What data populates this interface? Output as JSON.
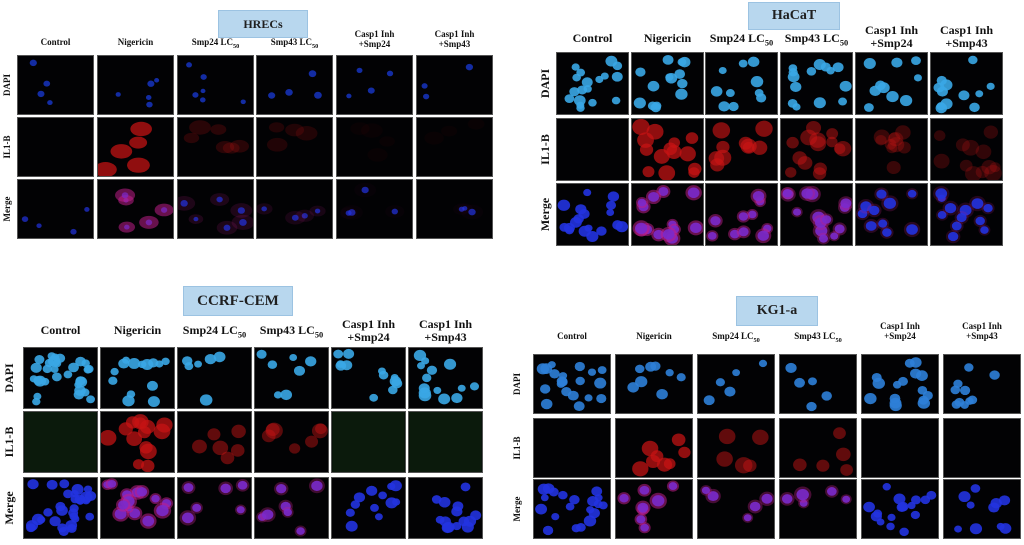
{
  "panels": [
    {
      "id": "hrecs",
      "title": "HRECs",
      "columns": [
        "Control",
        "Nigericin",
        "Smp24 LC50",
        "Smp43 LC50",
        "Casp1 Inh +Smp24",
        "Casp1 Inh +Smp43"
      ],
      "rows": [
        "DAPI",
        "IL1-B",
        "Merge"
      ]
    },
    {
      "id": "hacat",
      "title": "HaCaT",
      "columns": [
        "Control",
        "Nigericin",
        "Smp24 LC50",
        "Smp43 LC50",
        "Casp1 Inh +Smp24",
        "Casp1 Inh +Smp43"
      ],
      "rows": [
        "DAPI",
        "IL1-B",
        "Merge"
      ]
    },
    {
      "id": "ccrf",
      "title": "CCRF-CEM",
      "columns": [
        "Control",
        "Nigericin",
        "Smp24 LC50",
        "Smp43 LC50",
        "Casp1 Inh +Smp24",
        "Casp1 Inh +Smp43"
      ],
      "rows": [
        "DAPI",
        "IL1-B",
        "Merge"
      ]
    },
    {
      "id": "kg1a",
      "title": "KG1-a",
      "columns": [
        "Control",
        "Nigericin",
        "Smp24 LC50",
        "Smp43 LC50",
        "Casp1 Inh +Smp24",
        "Casp1 Inh +Smp43"
      ],
      "rows": [
        "DAPI",
        "IL1-B",
        "Merge"
      ]
    }
  ],
  "colors": {
    "dapi_dim": "#1c2fd0",
    "dapi_bright": "#38a8e8",
    "il1b": "#c81414",
    "merge_blue": "#2233e0",
    "merge_pink": "#d0208a"
  }
}
